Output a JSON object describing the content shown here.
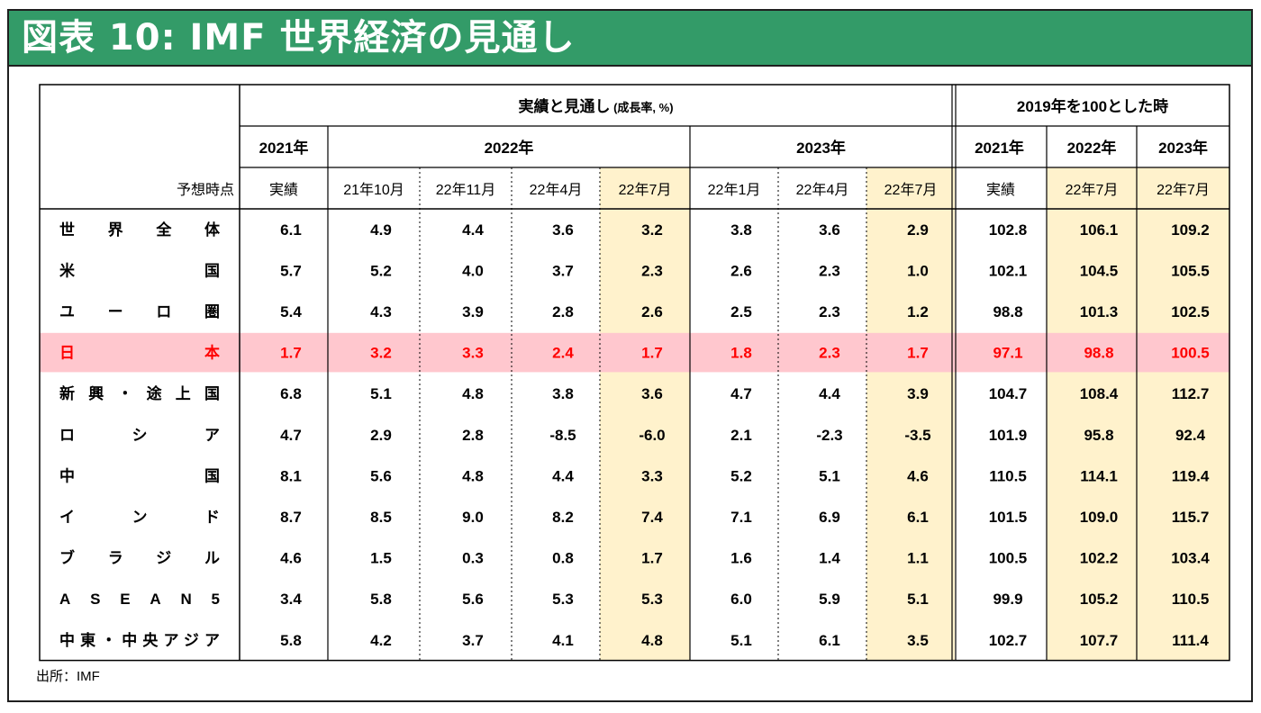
{
  "title": "図表 10: IMF 世界経済の見通し",
  "source": "出所：IMF",
  "colors": {
    "title_bar": "#339b68",
    "highlight_column": "#fff2cc",
    "japan_row": "#ffc7ce",
    "japan_text": "#ff0000"
  },
  "chart_data": {
    "type": "table",
    "group_headers": {
      "outlook": "実績と見通し",
      "outlook_unit": "(成長率, %)",
      "index": "2019年を100とした時"
    },
    "year_headers": [
      "2021年",
      "2022年",
      "2023年",
      "2021年",
      "2022年",
      "2023年"
    ],
    "forecast_label": "予想時点",
    "columns": [
      "実績",
      "21年10月",
      "22年11月",
      "22年4月",
      "22年7月",
      "22年1月",
      "22年4月",
      "22年7月",
      "実績",
      "22年7月",
      "22年7月"
    ],
    "highlighted_columns": [
      4,
      7,
      9,
      10
    ],
    "rows": [
      {
        "label": "世界全体",
        "values": [
          "6.1",
          "4.9",
          "4.4",
          "3.6",
          "3.2",
          "3.8",
          "3.6",
          "2.9",
          "102.8",
          "106.1",
          "109.2"
        ]
      },
      {
        "label": "米国",
        "values": [
          "5.7",
          "5.2",
          "4.0",
          "3.7",
          "2.3",
          "2.6",
          "2.3",
          "1.0",
          "102.1",
          "104.5",
          "105.5"
        ]
      },
      {
        "label": "ユーロ圏",
        "values": [
          "5.4",
          "4.3",
          "3.9",
          "2.8",
          "2.6",
          "2.5",
          "2.3",
          "1.2",
          "98.8",
          "101.3",
          "102.5"
        ]
      },
      {
        "label": "日本",
        "values": [
          "1.7",
          "3.2",
          "3.3",
          "2.4",
          "1.7",
          "1.8",
          "2.3",
          "1.7",
          "97.1",
          "98.8",
          "100.5"
        ],
        "highlight": true
      },
      {
        "label": "新興・途上国",
        "values": [
          "6.8",
          "5.1",
          "4.8",
          "3.8",
          "3.6",
          "4.7",
          "4.4",
          "3.9",
          "104.7",
          "108.4",
          "112.7"
        ]
      },
      {
        "label": "ロシア",
        "values": [
          "4.7",
          "2.9",
          "2.8",
          "-8.5",
          "-6.0",
          "2.1",
          "-2.3",
          "-3.5",
          "101.9",
          "95.8",
          "92.4"
        ]
      },
      {
        "label": "中国",
        "values": [
          "8.1",
          "5.6",
          "4.8",
          "4.4",
          "3.3",
          "5.2",
          "5.1",
          "4.6",
          "110.5",
          "114.1",
          "119.4"
        ]
      },
      {
        "label": "インド",
        "values": [
          "8.7",
          "8.5",
          "9.0",
          "8.2",
          "7.4",
          "7.1",
          "6.9",
          "6.1",
          "101.5",
          "109.0",
          "115.7"
        ]
      },
      {
        "label": "ブラジル",
        "values": [
          "4.6",
          "1.5",
          "0.3",
          "0.8",
          "1.7",
          "1.6",
          "1.4",
          "1.1",
          "100.5",
          "102.2",
          "103.4"
        ]
      },
      {
        "label": "ASEAN5",
        "values": [
          "3.4",
          "5.8",
          "5.6",
          "5.3",
          "5.3",
          "6.0",
          "5.9",
          "5.1",
          "99.9",
          "105.2",
          "110.5"
        ]
      },
      {
        "label": "中東・中央アジア",
        "values": [
          "5.8",
          "4.2",
          "3.7",
          "4.1",
          "4.8",
          "5.1",
          "6.1",
          "3.5",
          "102.7",
          "107.7",
          "111.4"
        ]
      }
    ]
  }
}
